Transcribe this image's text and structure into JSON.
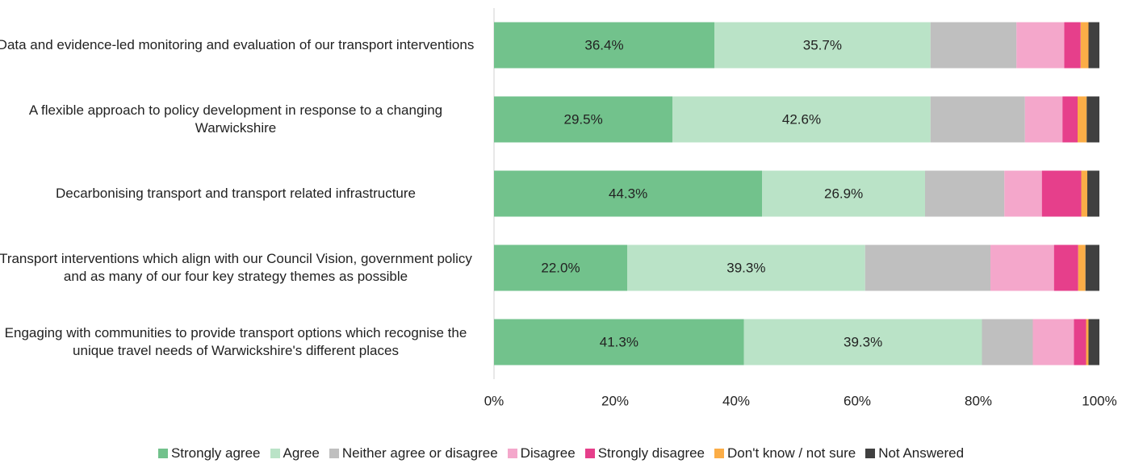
{
  "chart_data": {
    "type": "stacked-bar-horizontal",
    "categories": [
      "Data and evidence-led monitoring and evaluation of our transport interventions",
      "A flexible approach to policy development in response to a changing Warwickshire",
      "Decarbonising transport and transport related infrastructure",
      "Transport interventions which align with our Council Vision, government policy and as many of our four key strategy themes as possible",
      "Engaging with communities to provide transport options which recognise the unique travel needs of Warwickshire's different places"
    ],
    "series": [
      {
        "name": "Strongly agree",
        "color": "#72c28c",
        "values": [
          36.4,
          29.5,
          44.3,
          22.0,
          41.3
        ],
        "value_labels": [
          "36.4%",
          "29.5%",
          "44.3%",
          "22.0%",
          "41.3%"
        ]
      },
      {
        "name": "Agree",
        "color": "#bae3c7",
        "values": [
          35.7,
          42.6,
          26.9,
          39.3,
          39.3
        ],
        "value_labels": [
          "35.7%",
          "42.6%",
          "26.9%",
          "39.3%",
          "39.3%"
        ]
      },
      {
        "name": "Neither agree or disagree",
        "color": "#bfbfbf",
        "values": [
          14.2,
          15.6,
          13.1,
          20.7,
          8.4
        ]
      },
      {
        "name": "Disagree",
        "color": "#f4a7cb",
        "values": [
          7.9,
          6.2,
          6.2,
          10.5,
          6.8
        ]
      },
      {
        "name": "Strongly disagree",
        "color": "#e63f8b",
        "values": [
          2.7,
          2.5,
          6.5,
          4.0,
          2.0
        ]
      },
      {
        "name": "Don't know / not sure",
        "color": "#fbad47",
        "values": [
          1.3,
          1.5,
          1.0,
          1.2,
          0.4
        ]
      },
      {
        "name": "Not Answered",
        "color": "#404040",
        "values": [
          1.8,
          2.1,
          2.0,
          2.3,
          1.8
        ]
      }
    ],
    "xlim": [
      0,
      100
    ],
    "xticks": [
      {
        "value": 0,
        "label": "0%"
      },
      {
        "value": 20,
        "label": "20%"
      },
      {
        "value": 40,
        "label": "40%"
      },
      {
        "value": 60,
        "label": "60%"
      },
      {
        "value": 80,
        "label": "80%"
      },
      {
        "value": 100,
        "label": "100%"
      }
    ],
    "legend": "bottom"
  }
}
